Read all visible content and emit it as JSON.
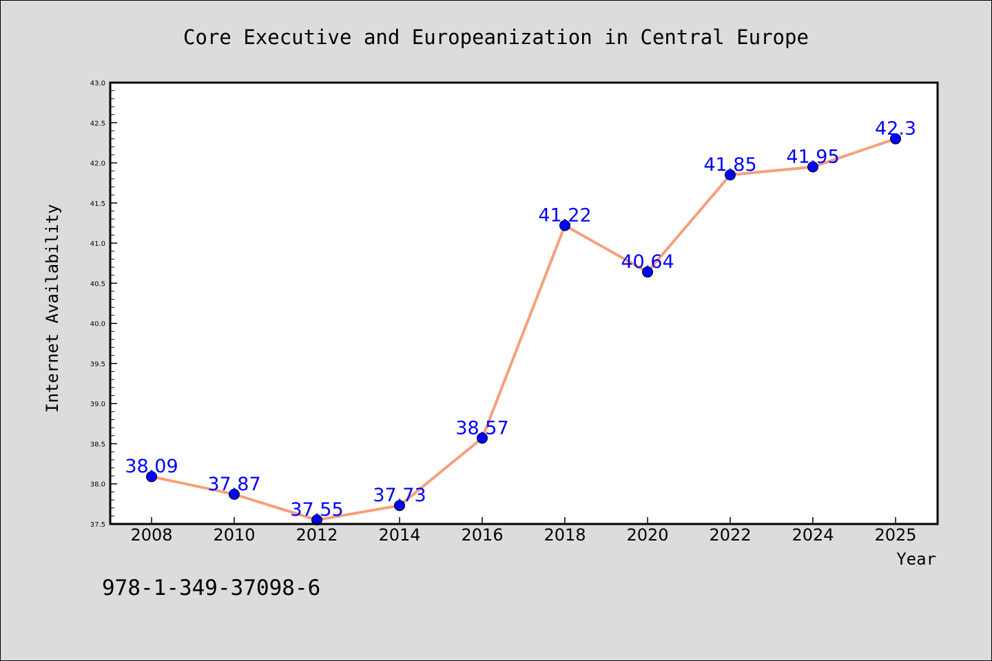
{
  "chart_data": {
    "type": "line",
    "title": "Core Executive and Europeanization in Central Europe",
    "xlabel": "Year",
    "ylabel": "Internet Availability",
    "ylim": [
      37.5,
      43.0
    ],
    "yticks": [
      "37.5",
      "38.0",
      "38.5",
      "39.0",
      "39.5",
      "40.0",
      "40.5",
      "41.0",
      "41.5",
      "42.0",
      "42.5",
      "43.0"
    ],
    "x": [
      "2008",
      "2010",
      "2012",
      "2014",
      "2016",
      "2018",
      "2020",
      "2022",
      "2024",
      "2025"
    ],
    "values": [
      38.09,
      37.87,
      37.55,
      37.73,
      38.57,
      41.22,
      40.64,
      41.85,
      41.95,
      42.3
    ],
    "data_labels": [
      "38.09",
      "37.87",
      "37.55",
      "37.73",
      "38.57",
      "41.22",
      "40.64",
      "41.85",
      "41.95",
      "42.3"
    ],
    "grid": false,
    "line_color": "#f5a07a",
    "marker_color": "#0000ff",
    "label_color": "#0000ff",
    "background": "#dcdcdc",
    "plot_background": "#ffffff"
  },
  "footer": {
    "isbn": "978-1-349-37098-6"
  }
}
